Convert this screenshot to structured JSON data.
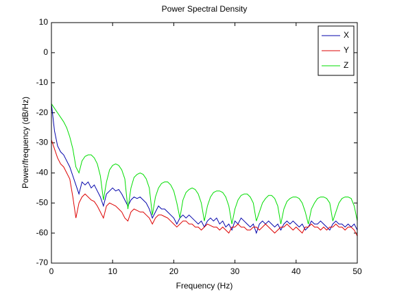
{
  "chart_data": {
    "type": "line",
    "title": "Power Spectral Density",
    "xlabel": "Frequency (Hz)",
    "ylabel": "Power/frequency (dB/Hz)",
    "x": [
      0,
      0.5,
      1,
      1.5,
      2,
      2.5,
      3,
      3.5,
      4,
      4.5,
      5,
      5.5,
      6,
      6.5,
      7,
      7.5,
      8,
      8.5,
      9,
      9.5,
      10,
      10.5,
      11,
      11.5,
      12,
      12.5,
      13,
      13.5,
      14,
      14.5,
      15,
      15.5,
      16,
      16.5,
      17,
      17.5,
      18,
      18.5,
      19,
      19.5,
      20,
      20.5,
      21,
      21.5,
      22,
      22.5,
      23,
      23.5,
      24,
      24.5,
      25,
      25.5,
      26,
      26.5,
      27,
      27.5,
      28,
      28.5,
      29,
      29.5,
      30,
      30.5,
      31,
      31.5,
      32,
      32.5,
      33,
      33.5,
      34,
      34.5,
      35,
      35.5,
      36,
      36.5,
      37,
      37.5,
      38,
      38.5,
      39,
      39.5,
      40,
      40.5,
      41,
      41.5,
      42,
      42.5,
      43,
      43.5,
      44,
      44.5,
      45,
      45.5,
      46,
      46.5,
      47,
      47.5,
      48,
      48.5,
      49,
      49.5,
      50
    ],
    "series": [
      {
        "name": "X",
        "color": "#0000aa",
        "values": [
          -17,
          -26,
          -31,
          -33,
          -34,
          -36,
          -38,
          -41,
          -44,
          -47,
          -43,
          -44,
          -43,
          -45,
          -44,
          -46,
          -48,
          -51,
          -47,
          -46,
          -45,
          -46,
          -45.5,
          -47,
          -49,
          -51,
          -49,
          -48,
          -48.5,
          -48,
          -49,
          -50,
          -52,
          -55,
          -53,
          -51,
          -52,
          -52,
          -53,
          -54,
          -55,
          -57,
          -55,
          -54,
          -55,
          -54,
          -55,
          -56,
          -57,
          -56,
          -58,
          -56,
          -55,
          -56,
          -55,
          -57,
          -56,
          -58,
          -57,
          -59,
          -56,
          -57,
          -55,
          -56,
          -57,
          -58,
          -57,
          -60,
          -57,
          -56,
          -57,
          -56,
          -57,
          -58,
          -57,
          -59,
          -57,
          -56,
          -57,
          -56,
          -57,
          -58,
          -57,
          -59,
          -58,
          -56,
          -57,
          -57,
          -56,
          -57,
          -58,
          -59,
          -57,
          -56,
          -57,
          -57,
          -58,
          -57,
          -58,
          -57,
          -59
        ]
      },
      {
        "name": "Y",
        "color": "#dd0000",
        "values": [
          -29,
          -32,
          -35,
          -37,
          -38,
          -40,
          -42,
          -48,
          -55,
          -50,
          -48,
          -47,
          -48,
          -49,
          -49.5,
          -51,
          -53,
          -55,
          -51,
          -50,
          -50.5,
          -51,
          -52,
          -53,
          -55,
          -56,
          -53,
          -52,
          -52.5,
          -53,
          -53,
          -54,
          -55,
          -57,
          -55,
          -54,
          -54,
          -54.5,
          -55,
          -56,
          -57,
          -58,
          -57,
          -56,
          -56,
          -57,
          -57,
          -58,
          -58,
          -59,
          -58,
          -57,
          -57.5,
          -58,
          -58,
          -59,
          -58,
          -59,
          -60,
          -58,
          -58,
          -57,
          -58,
          -58,
          -59,
          -59,
          -58,
          -58,
          -59,
          -58,
          -57,
          -58,
          -59,
          -60,
          -59,
          -58,
          -58,
          -57,
          -58,
          -59,
          -58,
          -59,
          -60,
          -58,
          -58,
          -57,
          -58,
          -58,
          -59,
          -58,
          -59,
          -58,
          -58,
          -57,
          -58,
          -58,
          -59,
          -58,
          -58,
          -59,
          -61
        ]
      },
      {
        "name": "Z",
        "color": "#00dd00",
        "values": [
          -17,
          -18.5,
          -20,
          -21.5,
          -23,
          -25,
          -28,
          -32,
          -38,
          -40,
          -36,
          -34.5,
          -34,
          -34,
          -35,
          -37,
          -41,
          -49,
          -43,
          -39,
          -37.5,
          -37,
          -37.5,
          -39,
          -42,
          -52,
          -45,
          -41.5,
          -40.5,
          -40,
          -40.5,
          -42,
          -45,
          -54,
          -48,
          -45,
          -43.5,
          -43,
          -43,
          -44,
          -46,
          -50,
          -55,
          -49,
          -46.5,
          -45.5,
          -45,
          -45.5,
          -47,
          -50,
          -56,
          -51,
          -48,
          -46.5,
          -46,
          -46,
          -46.5,
          -48,
          -51,
          -57,
          -52,
          -49,
          -47.5,
          -47,
          -47,
          -48,
          -50,
          -56,
          -53,
          -50,
          -48.5,
          -47.5,
          -47.5,
          -48.5,
          -51,
          -57,
          -52,
          -49.5,
          -48.5,
          -48,
          -48,
          -48.5,
          -50,
          -53,
          -57,
          -52,
          -50,
          -48.5,
          -48,
          -48,
          -48.5,
          -50,
          -56,
          -53,
          -50,
          -48.5,
          -48,
          -48,
          -48.5,
          -51,
          -56
        ]
      }
    ],
    "xlim": [
      0,
      50
    ],
    "xticks": [
      0,
      10,
      20,
      30,
      40,
      50
    ],
    "ylim": [
      -70,
      10
    ],
    "yticks": [
      -70,
      -60,
      -50,
      -40,
      -30,
      -20,
      -10,
      0,
      10
    ],
    "grid": false,
    "legend": "northeast"
  }
}
